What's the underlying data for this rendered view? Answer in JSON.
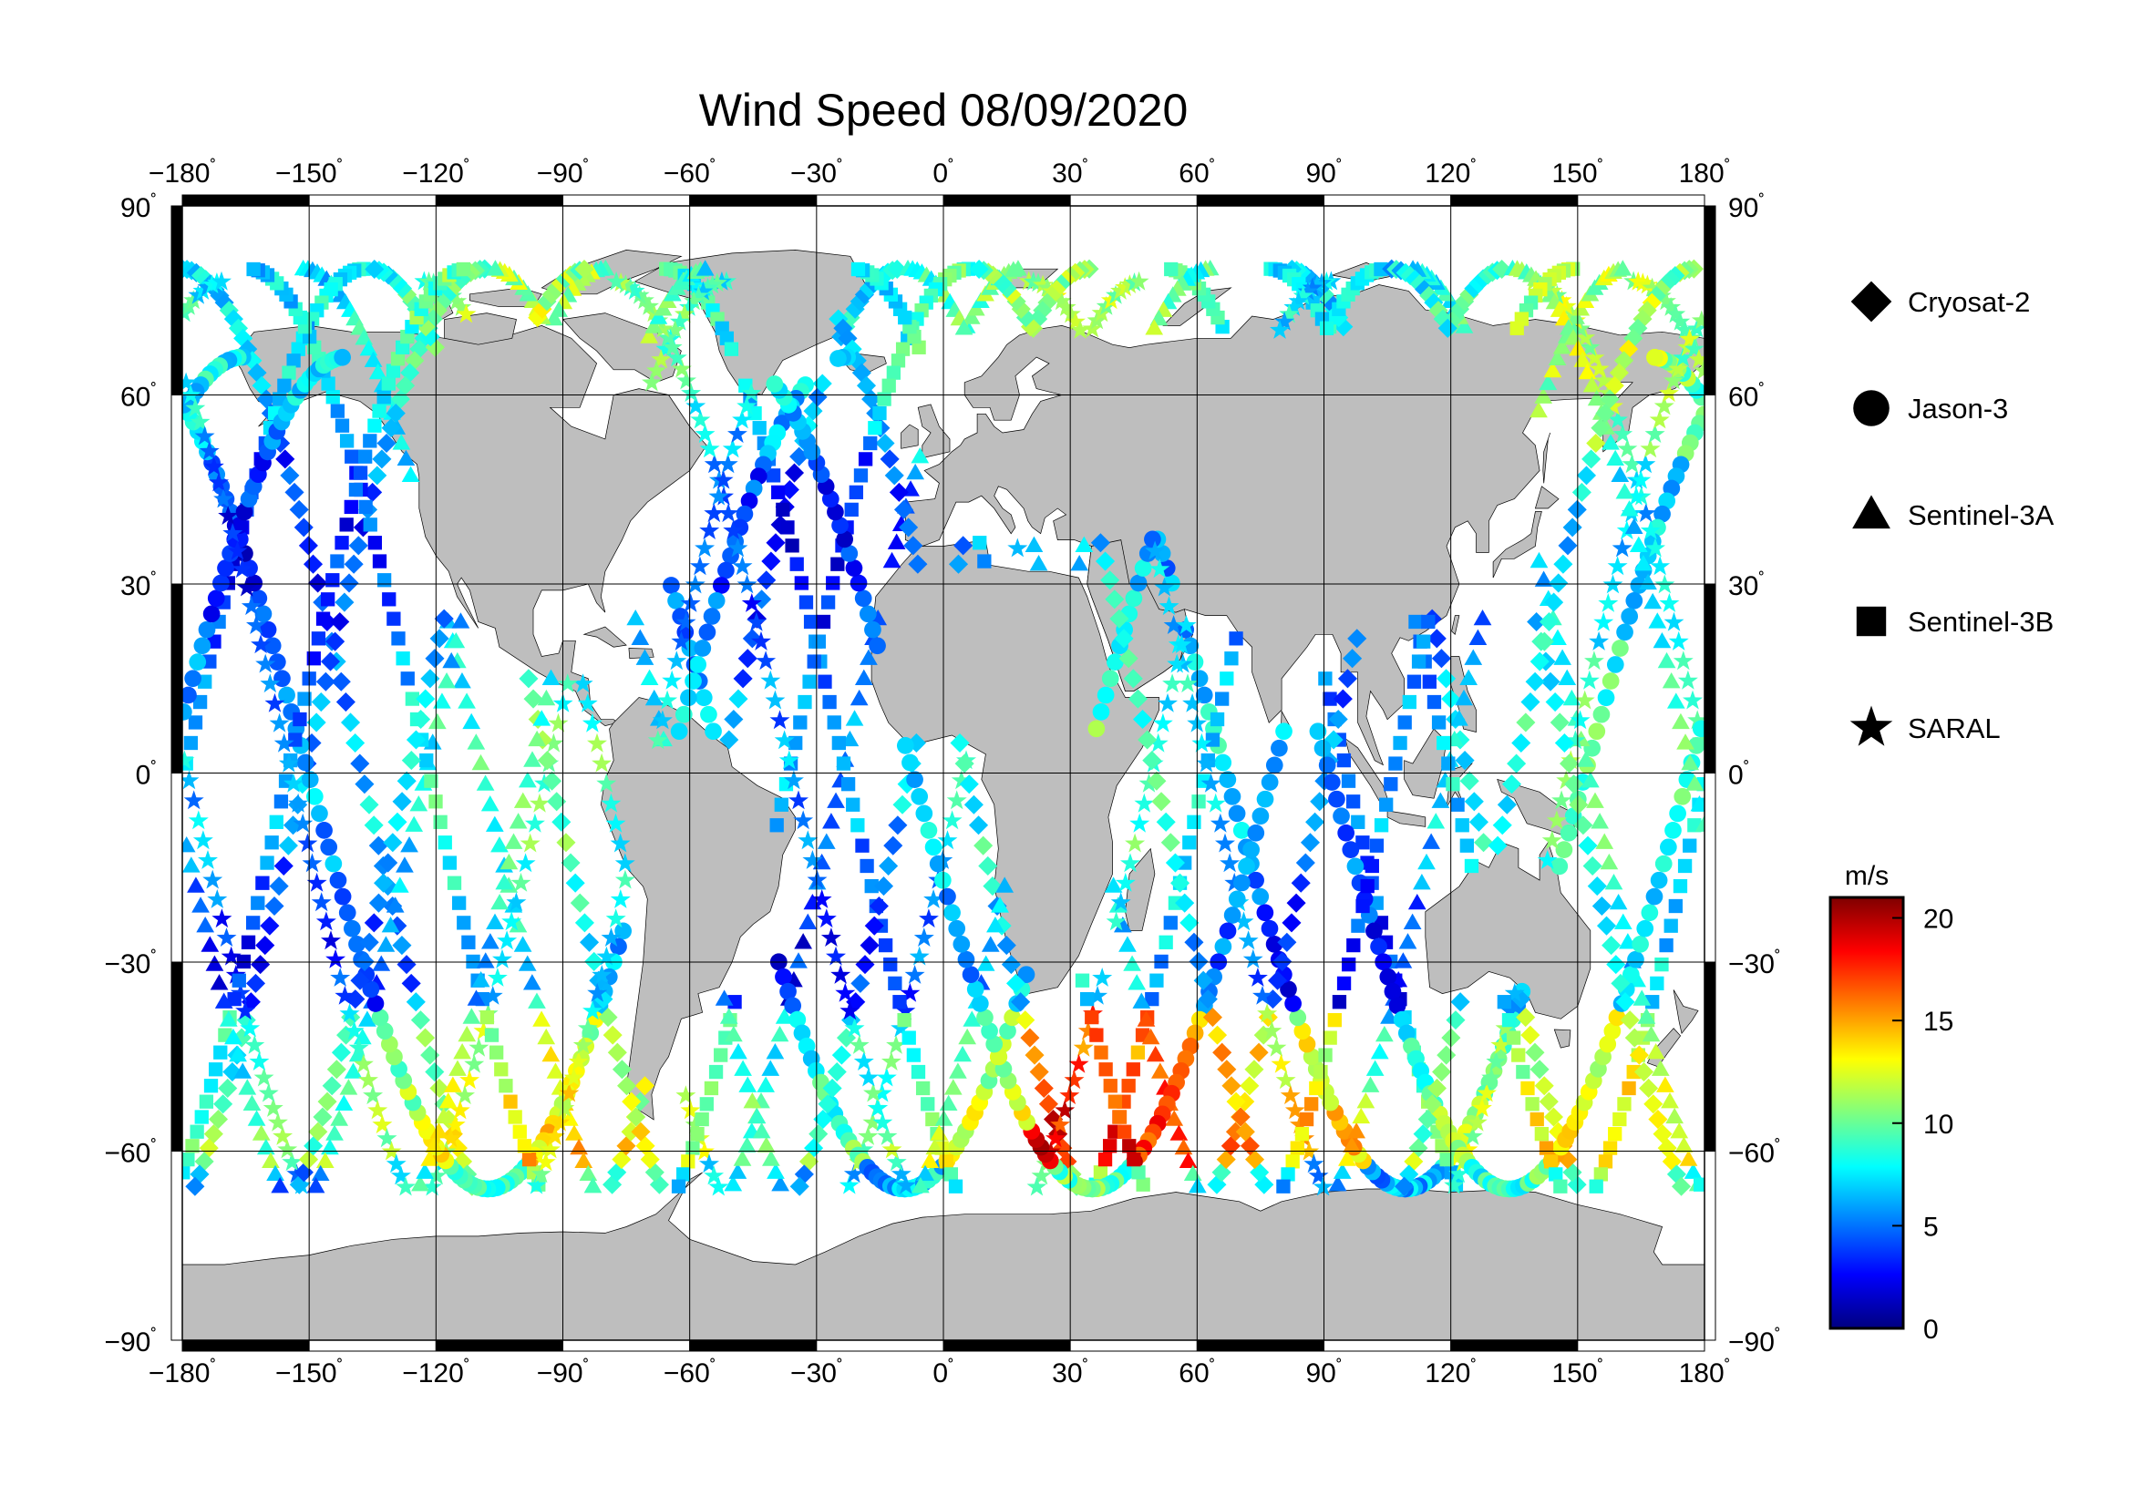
{
  "title": "Wind Speed 08/09/2020",
  "colors": {
    "land": "#bebebe",
    "ocean": "#ffffff",
    "coast": "#000000",
    "frame": "#000000"
  },
  "axes": {
    "lon_ticks": [
      -180,
      -150,
      -120,
      -90,
      -60,
      -30,
      0,
      30,
      60,
      90,
      120,
      150,
      180
    ],
    "lat_ticks": [
      90,
      60,
      30,
      0,
      -30,
      -60,
      -90
    ],
    "degree_symbol": "˚"
  },
  "legend": {
    "items": [
      {
        "label": "Cryosat-2",
        "symbol": "diamond-icon"
      },
      {
        "label": "Jason-3",
        "symbol": "circle-icon"
      },
      {
        "label": "Sentinel-3A",
        "symbol": "triangle-icon"
      },
      {
        "label": "Sentinel-3B",
        "symbol": "square-icon"
      },
      {
        "label": "SARAL",
        "symbol": "star-icon"
      }
    ]
  },
  "colorbar": {
    "unit": "m/s",
    "min": 0,
    "max": 21,
    "ticks": [
      0,
      5,
      10,
      15,
      20
    ],
    "colormap": [
      "#00007f",
      "#0000ff",
      "#007fff",
      "#00ffff",
      "#7fff7f",
      "#ffff00",
      "#ff7f00",
      "#ff0000",
      "#7f0000"
    ]
  }
}
